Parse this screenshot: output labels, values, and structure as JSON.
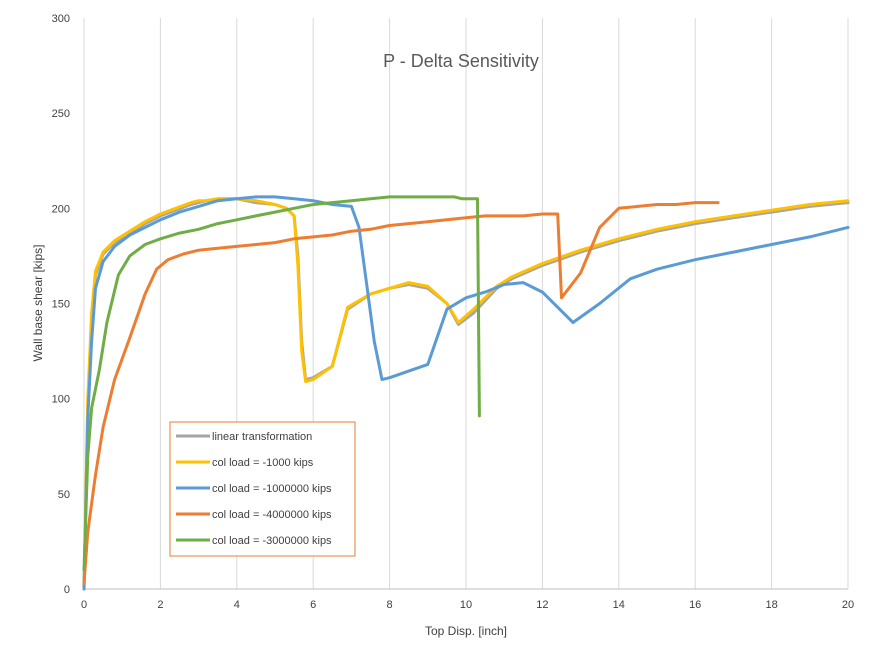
{
  "chart_data": {
    "type": "line",
    "title": "P - Delta Sensitivity",
    "xlabel": "Top Disp. [inch]",
    "ylabel": "Wall base shear [kips]",
    "xlim": [
      0,
      20
    ],
    "ylim": [
      0,
      300
    ],
    "xticks": [
      0,
      2,
      4,
      6,
      8,
      10,
      12,
      14,
      16,
      18,
      20
    ],
    "yticks": [
      0,
      50,
      100,
      150,
      200,
      250,
      300
    ],
    "grid": "vertical",
    "legend_position": "bottom-left",
    "series": [
      {
        "name": "linear transformation",
        "color": "#A5A5A5",
        "points": [
          [
            0,
            0
          ],
          [
            0.1,
            95
          ],
          [
            0.2,
            140
          ],
          [
            0.3,
            165
          ],
          [
            0.5,
            176
          ],
          [
            0.8,
            182
          ],
          [
            1.2,
            187
          ],
          [
            1.6,
            192
          ],
          [
            2.0,
            196
          ],
          [
            2.4,
            199
          ],
          [
            2.8,
            202
          ],
          [
            3.0,
            203
          ],
          [
            3.2,
            204
          ],
          [
            3.5,
            205
          ],
          [
            4.0,
            205
          ],
          [
            4.5,
            203
          ],
          [
            5.0,
            202
          ],
          [
            5.3,
            200
          ],
          [
            5.5,
            196
          ],
          [
            5.6,
            175
          ],
          [
            5.7,
            130
          ],
          [
            5.8,
            110
          ],
          [
            6.0,
            111
          ],
          [
            6.5,
            117
          ],
          [
            6.9,
            147
          ],
          [
            7.5,
            155
          ],
          [
            8.0,
            158
          ],
          [
            8.5,
            160
          ],
          [
            9.0,
            158
          ],
          [
            9.5,
            150
          ],
          [
            9.8,
            139
          ],
          [
            10.2,
            145
          ],
          [
            10.8,
            158
          ],
          [
            11.2,
            163
          ],
          [
            12.0,
            170
          ],
          [
            13.0,
            177
          ],
          [
            14.0,
            183
          ],
          [
            15.0,
            188
          ],
          [
            16.0,
            192
          ],
          [
            17.0,
            195
          ],
          [
            18.0,
            198
          ],
          [
            19.0,
            201
          ],
          [
            20.0,
            203
          ]
        ]
      },
      {
        "name": "col load = -1000 kips",
        "color": "#FFC000",
        "points": [
          [
            0,
            0
          ],
          [
            0.1,
            100
          ],
          [
            0.2,
            145
          ],
          [
            0.3,
            167
          ],
          [
            0.5,
            177
          ],
          [
            0.8,
            183
          ],
          [
            1.2,
            188
          ],
          [
            1.6,
            193
          ],
          [
            2.0,
            197
          ],
          [
            2.4,
            200
          ],
          [
            2.8,
            203
          ],
          [
            3.0,
            204
          ],
          [
            3.2,
            204
          ],
          [
            3.5,
            205
          ],
          [
            4.0,
            205
          ],
          [
            4.5,
            204
          ],
          [
            5.0,
            202
          ],
          [
            5.3,
            200
          ],
          [
            5.5,
            196
          ],
          [
            5.6,
            170
          ],
          [
            5.7,
            125
          ],
          [
            5.8,
            109
          ],
          [
            6.0,
            110
          ],
          [
            6.5,
            117
          ],
          [
            6.9,
            148
          ],
          [
            7.5,
            155
          ],
          [
            8.0,
            158
          ],
          [
            8.5,
            161
          ],
          [
            9.0,
            159
          ],
          [
            9.5,
            150
          ],
          [
            9.8,
            140
          ],
          [
            10.2,
            147
          ],
          [
            10.8,
            159
          ],
          [
            11.2,
            164
          ],
          [
            12.0,
            171
          ],
          [
            13.0,
            178
          ],
          [
            14.0,
            184
          ],
          [
            15.0,
            189
          ],
          [
            16.0,
            193
          ],
          [
            17.0,
            196
          ],
          [
            18.0,
            199
          ],
          [
            19.0,
            202
          ],
          [
            20.0,
            204
          ]
        ]
      },
      {
        "name": "col load = -1000000 kips",
        "color": "#5B9BD5",
        "points": [
          [
            0,
            0
          ],
          [
            0.1,
            90
          ],
          [
            0.2,
            130
          ],
          [
            0.3,
            158
          ],
          [
            0.5,
            172
          ],
          [
            0.8,
            180
          ],
          [
            1.2,
            186
          ],
          [
            1.6,
            190
          ],
          [
            2.0,
            194
          ],
          [
            2.5,
            198
          ],
          [
            3.0,
            201
          ],
          [
            3.5,
            204
          ],
          [
            4.0,
            205
          ],
          [
            4.5,
            206
          ],
          [
            5.0,
            206
          ],
          [
            5.5,
            205
          ],
          [
            6.0,
            204
          ],
          [
            6.5,
            202
          ],
          [
            7.0,
            201
          ],
          [
            7.2,
            190
          ],
          [
            7.4,
            160
          ],
          [
            7.6,
            130
          ],
          [
            7.8,
            110
          ],
          [
            8.0,
            111
          ],
          [
            9.0,
            118
          ],
          [
            9.5,
            147
          ],
          [
            10.0,
            153
          ],
          [
            10.5,
            156
          ],
          [
            11.0,
            160
          ],
          [
            11.5,
            161
          ],
          [
            12.0,
            156
          ],
          [
            12.8,
            140
          ],
          [
            13.5,
            150
          ],
          [
            14.3,
            163
          ],
          [
            15.0,
            168
          ],
          [
            16.0,
            173
          ],
          [
            17.0,
            177
          ],
          [
            18.0,
            181
          ],
          [
            19.0,
            185
          ],
          [
            20.0,
            190
          ]
        ]
      },
      {
        "name": "col load = -4000000 kips",
        "color": "#ED7D31",
        "points": [
          [
            0,
            3
          ],
          [
            0.1,
            30
          ],
          [
            0.3,
            60
          ],
          [
            0.5,
            85
          ],
          [
            0.8,
            110
          ],
          [
            1.2,
            132
          ],
          [
            1.6,
            155
          ],
          [
            1.9,
            168
          ],
          [
            2.2,
            173
          ],
          [
            2.6,
            176
          ],
          [
            3.0,
            178
          ],
          [
            3.5,
            179
          ],
          [
            4.0,
            180
          ],
          [
            4.5,
            181
          ],
          [
            5.0,
            182
          ],
          [
            5.5,
            184
          ],
          [
            6.0,
            185
          ],
          [
            6.5,
            186
          ],
          [
            7.0,
            188
          ],
          [
            7.5,
            189
          ],
          [
            8.0,
            191
          ],
          [
            8.5,
            192
          ],
          [
            9.0,
            193
          ],
          [
            9.5,
            194
          ],
          [
            10.0,
            195
          ],
          [
            10.5,
            196
          ],
          [
            11.0,
            196
          ],
          [
            11.5,
            196
          ],
          [
            12.0,
            197
          ],
          [
            12.4,
            197
          ],
          [
            12.5,
            153
          ],
          [
            13.0,
            166
          ],
          [
            13.5,
            190
          ],
          [
            14.0,
            200
          ],
          [
            14.5,
            201
          ],
          [
            15.0,
            202
          ],
          [
            15.5,
            202
          ],
          [
            16.0,
            203
          ],
          [
            16.6,
            203
          ]
        ]
      },
      {
        "name": "col load = -3000000 kips",
        "color": "#70AD47",
        "points": [
          [
            0,
            10
          ],
          [
            0.1,
            70
          ],
          [
            0.2,
            95
          ],
          [
            0.4,
            115
          ],
          [
            0.6,
            140
          ],
          [
            0.9,
            165
          ],
          [
            1.2,
            175
          ],
          [
            1.6,
            181
          ],
          [
            2.0,
            184
          ],
          [
            2.5,
            187
          ],
          [
            3.0,
            189
          ],
          [
            3.5,
            192
          ],
          [
            4.0,
            194
          ],
          [
            4.5,
            196
          ],
          [
            5.0,
            198
          ],
          [
            5.5,
            200
          ],
          [
            6.0,
            202
          ],
          [
            6.5,
            203
          ],
          [
            7.0,
            204
          ],
          [
            7.5,
            205
          ],
          [
            8.0,
            206
          ],
          [
            8.5,
            206
          ],
          [
            9.0,
            206
          ],
          [
            9.5,
            206
          ],
          [
            9.7,
            206
          ],
          [
            9.9,
            205
          ],
          [
            10.2,
            205
          ],
          [
            10.3,
            205
          ],
          [
            10.35,
            91
          ]
        ]
      }
    ]
  }
}
